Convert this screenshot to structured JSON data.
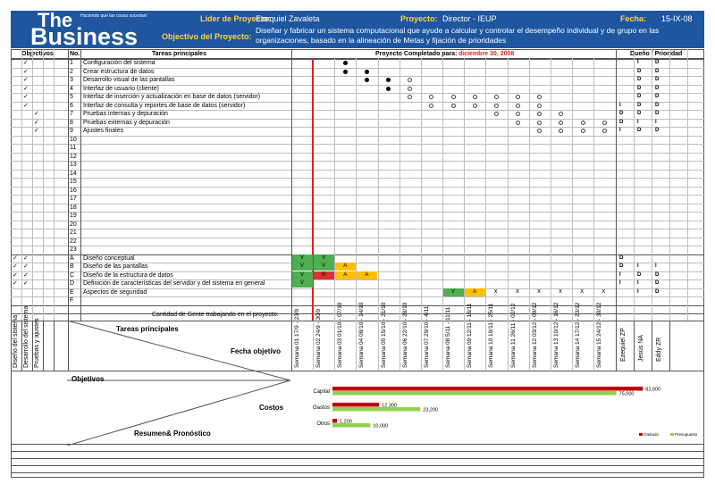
{
  "header": {
    "brand_the": "The",
    "brand_business": "Business",
    "tagline": "Haciendo que las cosas sucedan!",
    "leader_label": "Líder de Proyecto:",
    "leader_value": "Ezequiel Zavaleta",
    "project_label": "Proyecto:",
    "project_value": "Director - IEUP",
    "date_label": "Fecha:",
    "date_value": "15-IX-08",
    "objective_label": "Objectivo del Proyecto:",
    "objective_value_1": "Diseñar y fabricar un sistema computacional que ayude a calcular y controlar el desempeño individual y de grupo en las",
    "objective_value_2": "organizaciones, basado en la alineación de Metas y fijación de prioridades"
  },
  "columns": {
    "objectives": "Objectivos",
    "no": "No.",
    "tasks": "Tareas principales",
    "completed_label": "Proyecto Completado para:",
    "completed_date": "diciembre 30, 2008",
    "owner": "Dueño / Prioridad"
  },
  "tasks": [
    {
      "no": "1",
      "name": "Configuración del sistema"
    },
    {
      "no": "2",
      "name": "Crear estructura de datos"
    },
    {
      "no": "3",
      "name": "Desarrollo visual de las pantallas"
    },
    {
      "no": "4",
      "name": "Interfaz de usuario (cliente)"
    },
    {
      "no": "5",
      "name": "Interfaz de inserción y actualización en base de datos (servidor)"
    },
    {
      "no": "6",
      "name": "Interfaz de consulta y reportes de base de datos (servidor)"
    },
    {
      "no": "7",
      "name": "Pruebas internas y depuración"
    },
    {
      "no": "8",
      "name": "Pruebas externas y depuración"
    },
    {
      "no": "9",
      "name": "Ajustes finales"
    },
    {
      "no": "10",
      "name": ""
    },
    {
      "no": "11",
      "name": ""
    },
    {
      "no": "12",
      "name": ""
    },
    {
      "no": "13",
      "name": ""
    },
    {
      "no": "14",
      "name": ""
    },
    {
      "no": "15",
      "name": ""
    },
    {
      "no": "16",
      "name": ""
    },
    {
      "no": "17",
      "name": ""
    },
    {
      "no": "18",
      "name": ""
    },
    {
      "no": "19",
      "name": ""
    },
    {
      "no": "20",
      "name": ""
    },
    {
      "no": "21",
      "name": ""
    },
    {
      "no": "22",
      "name": ""
    },
    {
      "no": "23",
      "name": ""
    }
  ],
  "letter_tasks": [
    {
      "no": "A",
      "name": "Diseño conceptual"
    },
    {
      "no": "B",
      "name": "Diseño de las pantallas"
    },
    {
      "no": "C",
      "name": "Diseño de la estructura de datos"
    },
    {
      "no": "D",
      "name": "Definición de características del servidor y del sistema en general"
    },
    {
      "no": "E",
      "name": "Aspectos de seguridad"
    },
    {
      "no": "F",
      "name": ""
    }
  ],
  "people_row_label": "Cantidad de Gente trabajando en el proyecto:",
  "check_mark": "✓",
  "status_symbols": {
    "done": "V",
    "risk": "A",
    "fail": "R",
    "pending": "X"
  },
  "weeks": [
    "Semana 01 17/9 - 23/9",
    "Semana 02 24/9 - 30/9",
    "Semana 03 01/10 - 07/10",
    "Semana 04 08/10 - 14/10",
    "Semana 05 15/10 - 21/10",
    "Semana 06 22/10 - 28/10",
    "Semana 07 29/10 - 4/11",
    "Semana 08 5/11 - 11/11",
    "Semana 09 12/11 - 18/11",
    "Semana 10 19/11 - 25/11",
    "Semana 11 26/11 - 02/12",
    "Semana 12 03/12 - 09/12",
    "Semana 13 10/12 - 16/12",
    "Semana 14 17/12 - 23/12",
    "Semana 15 24/12 - 30/12"
  ],
  "owners": [
    "Ezequiel ZP",
    "Jesús NA",
    "Eddy ZR"
  ],
  "objective_names": [
    "Diseño del sistema",
    "Desarrollo del sistema",
    "Pruebas y ajustes"
  ],
  "bottom": {
    "tasks_label": "Tareas principales",
    "date_objective": "Fecha objetivo",
    "objectives": "Objetivos",
    "costs": "Costos",
    "summary": "Resumen& Pronóstico"
  },
  "chart_data": {
    "type": "bar",
    "orientation": "horizontal",
    "categories": [
      "Capital",
      "Gastos",
      "Otros"
    ],
    "series": [
      {
        "name": "Gastado",
        "color": "#c00000",
        "values": [
          82000,
          12300,
          1200
        ]
      },
      {
        "name": "Presupuesto",
        "color": "#92d050",
        "values": [
          75000,
          23200,
          10000
        ]
      }
    ],
    "value_labels": {
      "Gastado": [
        "82,000",
        "12,300",
        "1,200"
      ],
      "Presupuesto": [
        "75,000",
        "23,200",
        "10,000"
      ]
    },
    "legend_position": "bottom-right"
  },
  "colors": {
    "header_bg": "#1e56a0",
    "label_yellow": "#ffd23c",
    "green": "#4caf50",
    "amber": "#ffc000",
    "red": "#e03030",
    "today_line": "#e02020"
  }
}
